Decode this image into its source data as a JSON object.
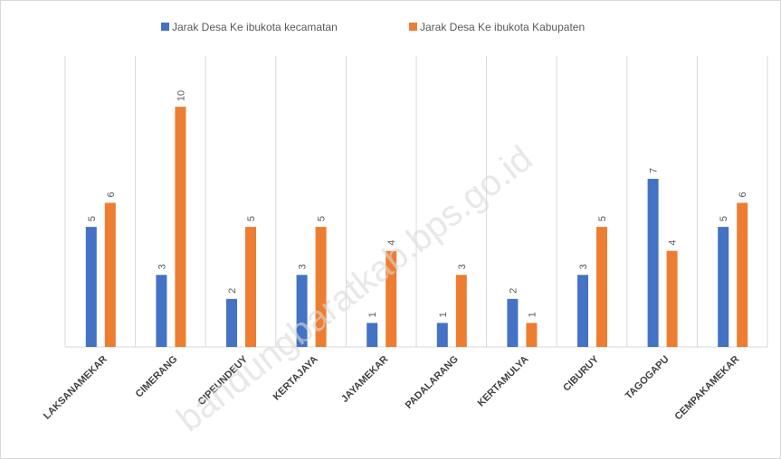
{
  "chart_data": {
    "type": "bar",
    "categories": [
      "LAKSANAMEKAR",
      "CIMERANG",
      "CIPEUNDEUY",
      "KERTAJAYA",
      "JAYAMEKAR",
      "PADALARANG",
      "KERTAMULYA",
      "CIBURUY",
      "TAGOGAPU",
      "CEMPAKAMEKAR"
    ],
    "series": [
      {
        "name": "Jarak Desa Ke ibukota kecamatan",
        "color": "#4472c4",
        "values": [
          5,
          3,
          2,
          3,
          1,
          1,
          2,
          3,
          7,
          5
        ]
      },
      {
        "name": "Jarak Desa Ke ibukota Kabupaten",
        "color": "#ed7d31",
        "values": [
          6,
          10,
          5,
          5,
          4,
          3,
          1,
          5,
          4,
          6
        ]
      }
    ],
    "ylim": [
      0,
      12
    ],
    "grid": true,
    "legend": "top",
    "watermark": "bandungbaratkab.bps.go.id"
  }
}
